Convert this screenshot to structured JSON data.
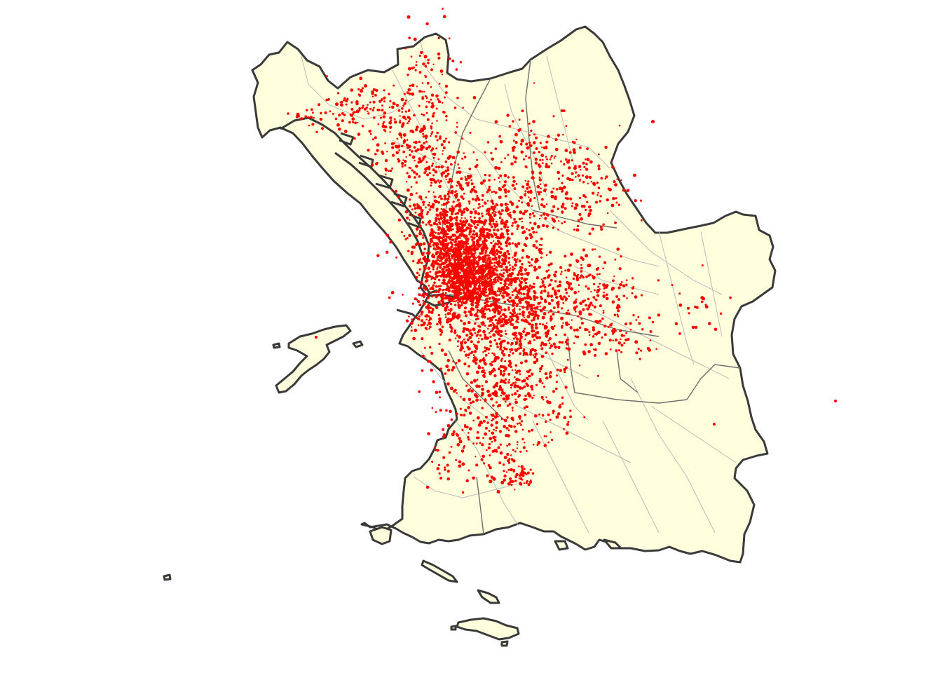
{
  "map": {
    "colors": {
      "land_fill": "#ffffdd",
      "outline": "#3a3a3a",
      "district_lines": "#b9b9b9",
      "sector_lines": "#6e6e6e",
      "points": "#ff0000",
      "background": "#ffffff"
    },
    "layers": [
      "land-outline",
      "district-boundaries",
      "sector-boundaries",
      "point-locations"
    ],
    "legend": null,
    "title": null
  }
}
